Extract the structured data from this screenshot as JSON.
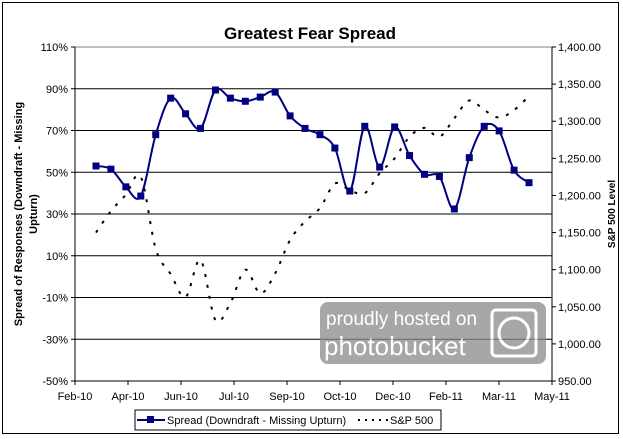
{
  "chart_data": {
    "type": "line",
    "title": "Greatest Fear Spread",
    "ylabel": "Spread of Responses (Downdraft - Missing Upturn)",
    "y2label": "S&P 500 Level",
    "xlabel": "",
    "x_ticks": [
      "Feb-10",
      "Apr-10",
      "Jun-10",
      "Jul-10",
      "Sep-10",
      "Oct-10",
      "Dec-10",
      "Feb-11",
      "Mar-11",
      "May-11"
    ],
    "ylim": [
      -50,
      110
    ],
    "y_ticks": [
      "110%",
      "90%",
      "70%",
      "50%",
      "30%",
      "10%",
      "-10%",
      "-30%",
      "-50%"
    ],
    "y2lim": [
      950,
      1400
    ],
    "y2_ticks": [
      "1,400.00",
      "1,350.00",
      "1,300.00",
      "1,250.00",
      "1,200.00",
      "1,150.00",
      "1,100.00",
      "1,050.00",
      "1,000.00",
      "950.00"
    ],
    "grid": "horizontal",
    "legend_placement": "bottom",
    "series": [
      {
        "name": "Spread (Downdraft - Missing Upturn)",
        "axis": "left",
        "color": "#000080",
        "marker": "square",
        "values": [
          53,
          51.5,
          43,
          38.6,
          68,
          85.5,
          78,
          71,
          89.4,
          85.5,
          84,
          86,
          88.4,
          77,
          71,
          68,
          61.6,
          41,
          72,
          52.5,
          71.7,
          58,
          49,
          48,
          32.4,
          57,
          72,
          69.8,
          51,
          45
        ]
      },
      {
        "name": "S&P 500",
        "axis": "right",
        "color": "#000000",
        "style": "dotted",
        "values": [
          1150,
          1179,
          1201,
          1225,
          1128,
          1094,
          1063,
          1113,
          1032,
          1055,
          1100,
          1068,
          1095,
          1140,
          1165,
          1183,
          1216,
          1207,
          1203,
          1230,
          1250,
          1279,
          1291,
          1279,
          1304,
          1328,
          1315,
          1305,
          1315,
          1334
        ]
      }
    ]
  },
  "watermark": {
    "line1": "proudly hosted on",
    "line2": "photobucket"
  }
}
